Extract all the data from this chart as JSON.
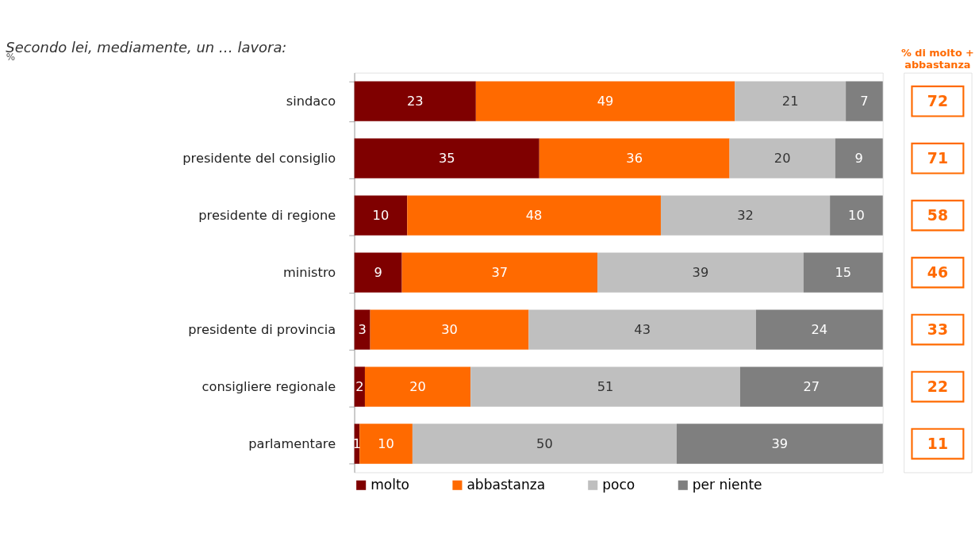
{
  "chart_data": {
    "type": "bar",
    "orientation": "horizontal",
    "stacked": true,
    "data_labels": true,
    "legend": "bottom",
    "grid": false,
    "title": "Secondo lei, mediamente, un … lavora:",
    "annotations": [
      "%",
      "% di molto +",
      "abbastanza",
      "72",
      "71",
      "58",
      "46",
      "33",
      "22",
      "11"
    ],
    "categories": [
      "sindaco",
      "presidente del consiglio",
      "presidente di regione",
      "ministro",
      "presidente di provincia",
      "consigliere regionale",
      "parlamentare"
    ],
    "series": [
      {
        "name": "molto",
        "color": "#7f0000",
        "values": [
          23,
          35,
          10,
          9,
          3,
          2,
          1
        ]
      },
      {
        "name": "abbastanza",
        "color": "#ff6a00",
        "values": [
          49,
          36,
          48,
          37,
          30,
          20,
          10
        ]
      },
      {
        "name": "poco",
        "color": "#bfbfbf",
        "values": [
          21,
          20,
          32,
          39,
          43,
          51,
          50
        ]
      },
      {
        "name": "per niente",
        "color": "#7f7f7f",
        "values": [
          7,
          9,
          10,
          15,
          24,
          27,
          39
        ]
      }
    ]
  }
}
